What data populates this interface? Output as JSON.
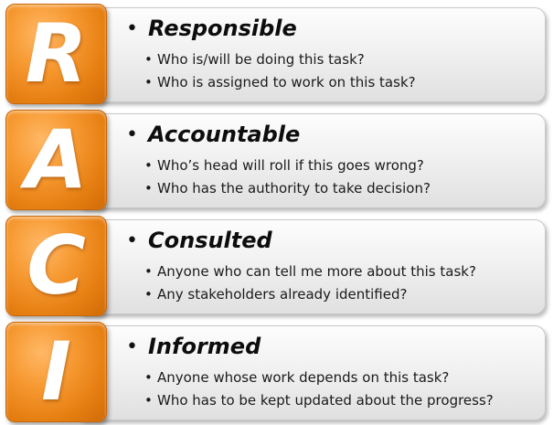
{
  "rows": [
    {
      "letter": "R",
      "title": "Responsible",
      "items": [
        "Who is/will be doing this task?",
        "Who is assigned to work on this task?"
      ]
    },
    {
      "letter": "A",
      "title": "Accountable",
      "items": [
        "Who’s head will roll if this goes wrong?",
        "Who has the authority to take decision?"
      ]
    },
    {
      "letter": "C",
      "title": "Consulted",
      "items": [
        "Anyone who can tell me more about this task?",
        "Any stakeholders already identified?"
      ]
    },
    {
      "letter": "I",
      "title": "Informed",
      "items": [
        "Anyone whose work depends on this task?",
        "Who has to be kept updated about the progress?"
      ]
    }
  ],
  "colors": {
    "tile_orange": "#f79a33",
    "tile_dark": "#cf6a06",
    "panel_light": "#fdfdfd",
    "panel_dark": "#e0e0e0",
    "text": "#111111"
  }
}
